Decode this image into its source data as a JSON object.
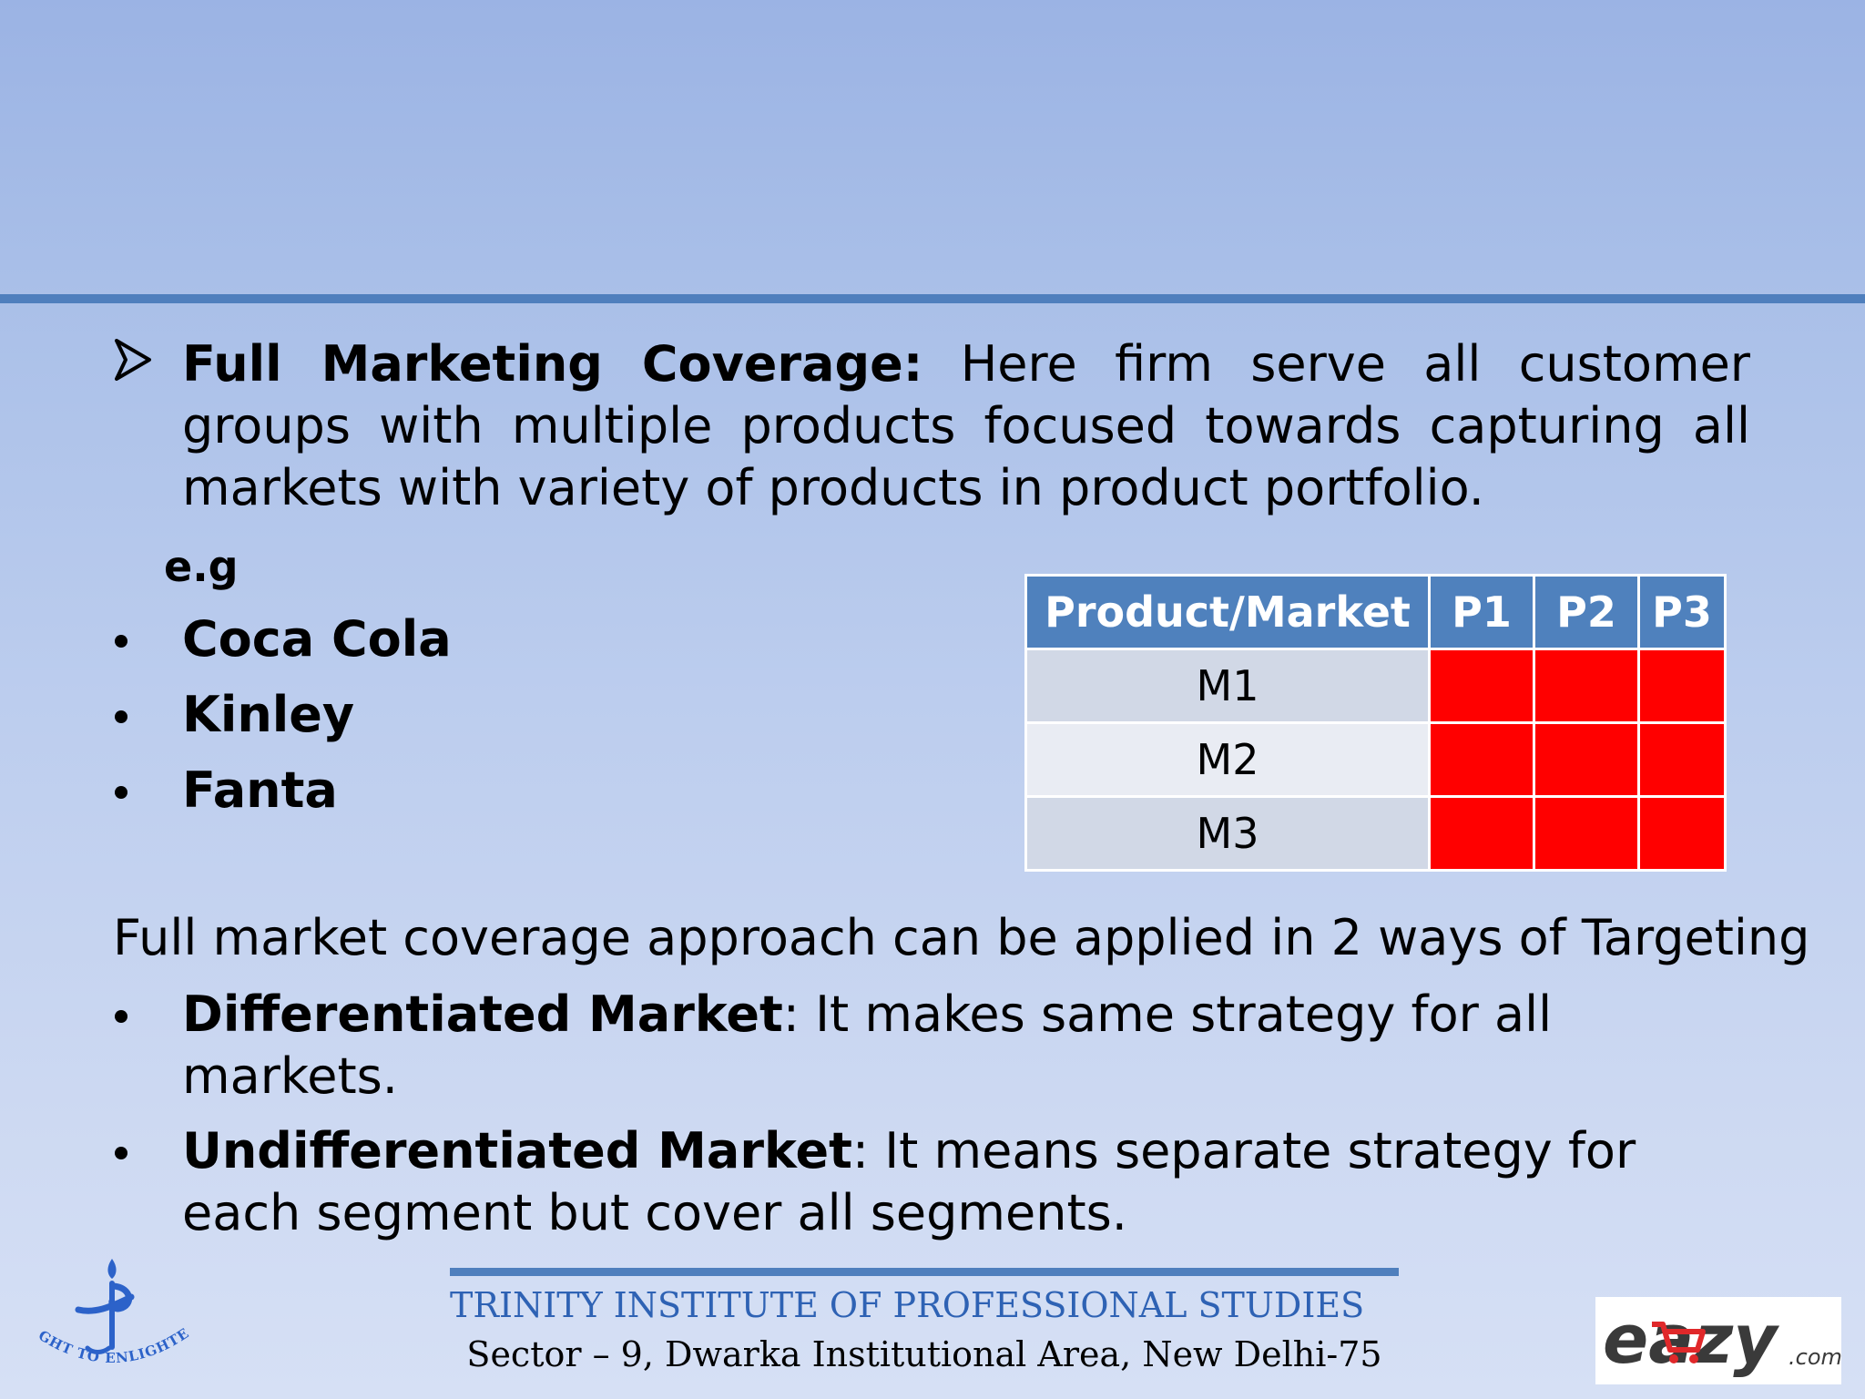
{
  "content": {
    "point_title": "Full Marketing Coverage:",
    "point_text": "Here firm serve all customer groups with multiple products focused towards capturing all markets with variety of products in product portfolio.",
    "example_label": "e.g",
    "examples": [
      "Coca Cola",
      "Kinley",
      "Fanta"
    ]
  },
  "table": {
    "header": [
      "Product/Market",
      "P1",
      "P2",
      "P3"
    ],
    "rows": [
      "M1",
      "M2",
      "M3"
    ],
    "fill_color": "#ff0000",
    "header_color": "#4f81bd"
  },
  "targeting": {
    "lead": "Full market coverage approach can be applied in  2 ways of Targeting",
    "items": [
      {
        "term": "Differentiated Market",
        "text": ": It makes same strategy for all markets."
      },
      {
        "term": "Undifferentiated Market",
        "text": ": It means separate strategy for each segment but cover all segments."
      }
    ]
  },
  "footer": {
    "institute": "TRINITY INSTITUTE OF PROFESSIONAL STUDIES",
    "address": "Sector – 9, Dwarka Institutional Area, New Delhi-75",
    "left_logo_motto": "LIGHT TO ENLIGHTEN",
    "right_logo_text": "eazy",
    "right_logo_suffix": ".com"
  }
}
